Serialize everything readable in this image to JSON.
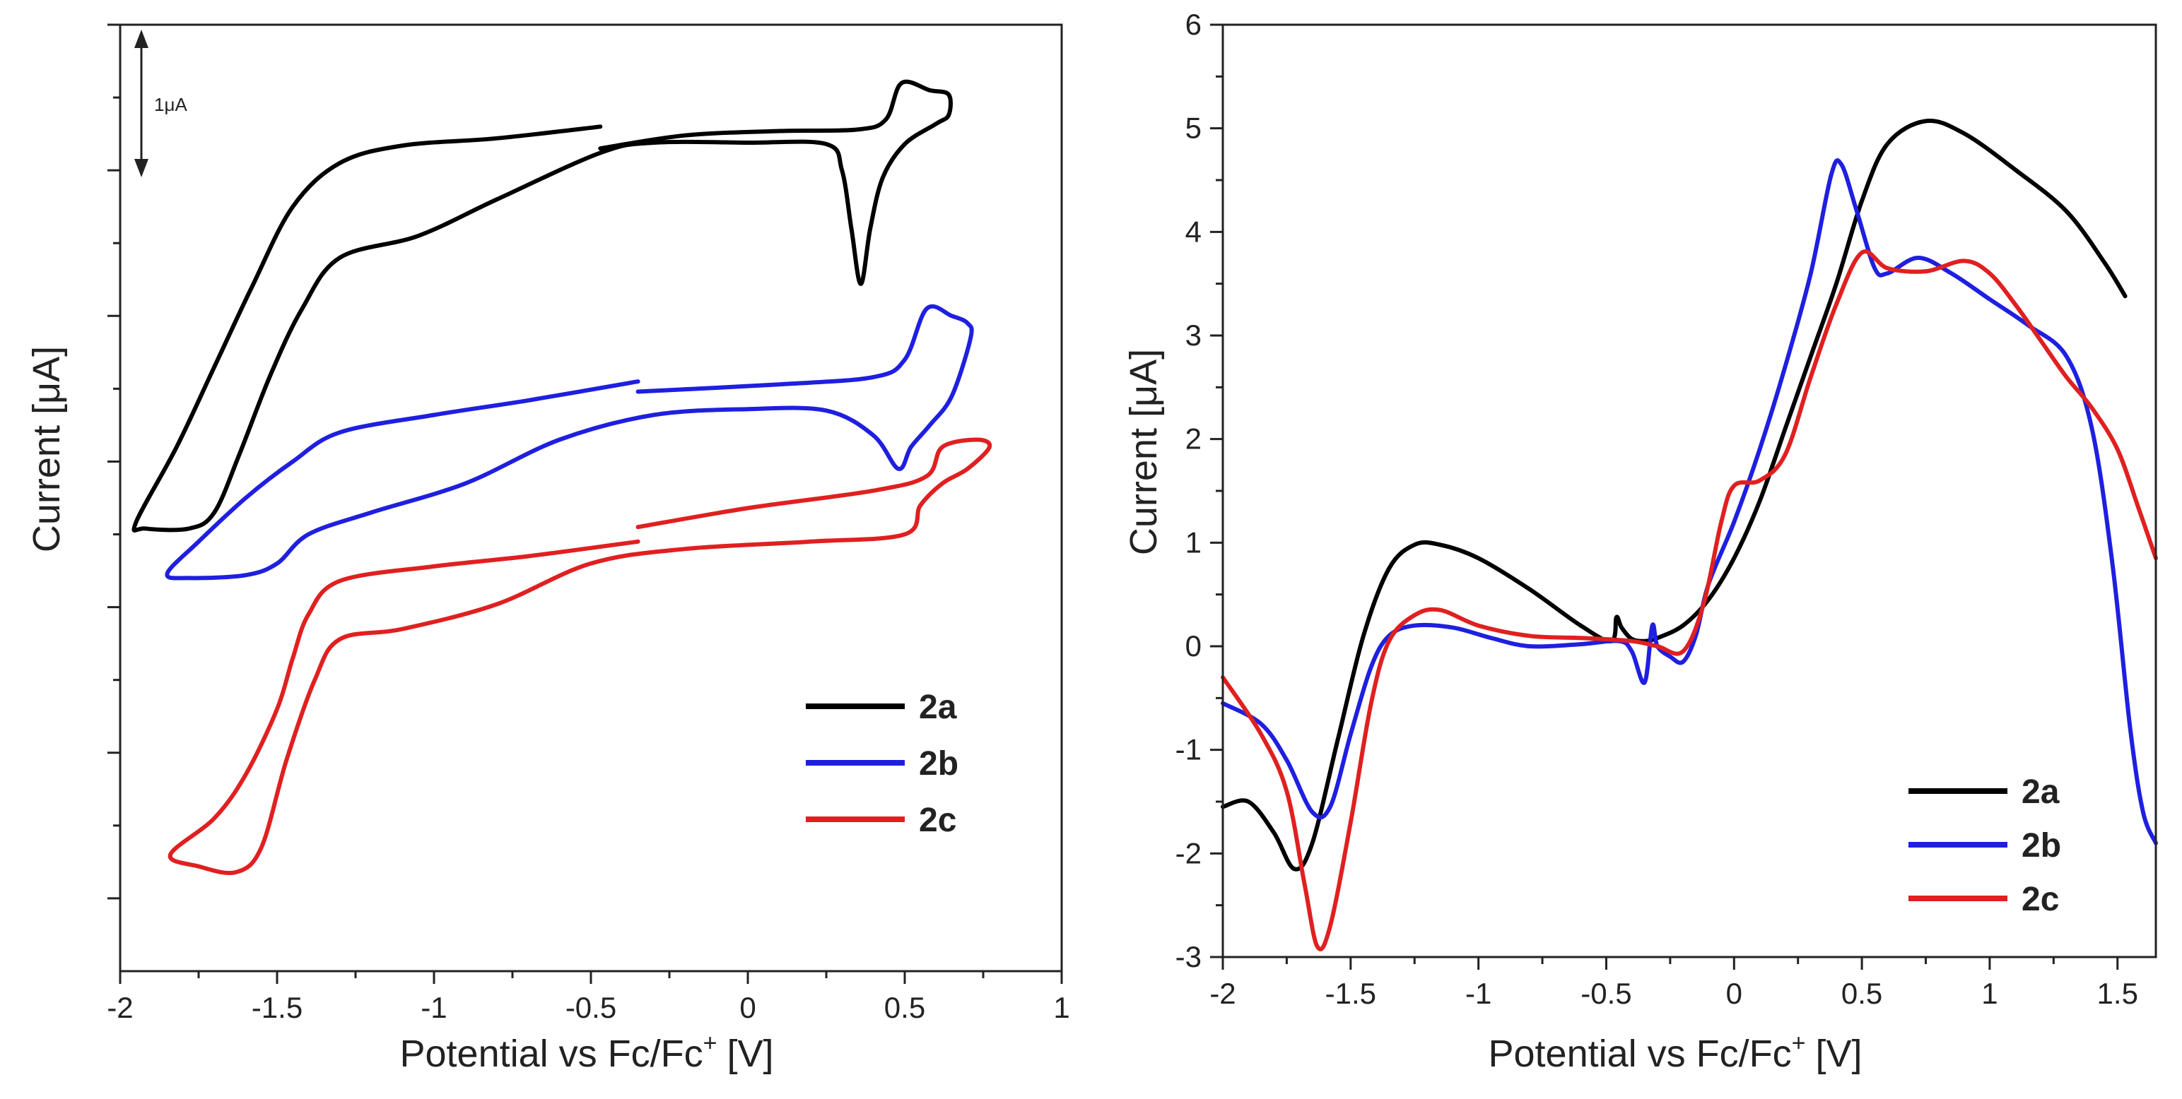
{
  "chart_data": [
    {
      "type": "line",
      "xlabel": "Potential vs Fc/Fc",
      "xlabel_sup": "+",
      "xlabel_unit": "[V]",
      "ylabel": "Current [μA]",
      "xlim": [
        -2,
        1
      ],
      "xticks": [
        "-2",
        "-1.5",
        "-1",
        "-0.5",
        "0",
        "0.5",
        "1"
      ],
      "xtick_values": [
        -2,
        -1.5,
        -1,
        -0.5,
        0,
        0.5,
        1
      ],
      "ylim": [
        0,
        6.5
      ],
      "yticks_unlabeled": [
        0.5,
        1.5,
        2.5,
        3.5,
        4.5,
        5.5,
        6.5
      ],
      "scale_bar": {
        "label": "1μA",
        "value": 1
      },
      "legend": "bottom-right",
      "colors": {
        "2a": "#000000",
        "2b": "#1f1fe0",
        "2c": "#e02020"
      },
      "series": [
        {
          "name": "2a",
          "points": [
            [
              -0.47,
              5.8
            ],
            [
              -0.8,
              5.72
            ],
            [
              -1.1,
              5.67
            ],
            [
              -1.3,
              5.55
            ],
            [
              -1.45,
              5.25
            ],
            [
              -1.58,
              4.7
            ],
            [
              -1.7,
              4.15
            ],
            [
              -1.82,
              3.6
            ],
            [
              -1.95,
              3.08
            ],
            [
              -1.92,
              3.04
            ],
            [
              -1.78,
              3.04
            ],
            [
              -1.7,
              3.15
            ],
            [
              -1.62,
              3.55
            ],
            [
              -1.52,
              4.1
            ],
            [
              -1.42,
              4.55
            ],
            [
              -1.3,
              4.9
            ],
            [
              -1.05,
              5.05
            ],
            [
              -0.8,
              5.3
            ],
            [
              -0.47,
              5.62
            ],
            [
              -0.3,
              5.69
            ],
            [
              0,
              5.69
            ],
            [
              0.25,
              5.68
            ],
            [
              0.3,
              5.5
            ],
            [
              0.33,
              5.1
            ],
            [
              0.36,
              4.72
            ],
            [
              0.39,
              5.1
            ],
            [
              0.43,
              5.45
            ],
            [
              0.5,
              5.68
            ],
            [
              0.6,
              5.82
            ],
            [
              0.64,
              5.88
            ],
            [
              0.64,
              6.02
            ],
            [
              0.58,
              6.05
            ],
            [
              0.49,
              6.1
            ],
            [
              0.44,
              5.85
            ],
            [
              0.35,
              5.78
            ],
            [
              0.1,
              5.77
            ],
            [
              -0.2,
              5.74
            ],
            [
              -0.47,
              5.65
            ]
          ]
        },
        {
          "name": "2b",
          "points": [
            [
              -0.35,
              4.05
            ],
            [
              -0.7,
              3.92
            ],
            [
              -1.0,
              3.82
            ],
            [
              -1.3,
              3.7
            ],
            [
              -1.45,
              3.5
            ],
            [
              -1.6,
              3.25
            ],
            [
              -1.75,
              2.95
            ],
            [
              -1.85,
              2.73
            ],
            [
              -1.78,
              2.7
            ],
            [
              -1.6,
              2.72
            ],
            [
              -1.5,
              2.8
            ],
            [
              -1.4,
              3.0
            ],
            [
              -1.2,
              3.15
            ],
            [
              -0.9,
              3.35
            ],
            [
              -0.6,
              3.65
            ],
            [
              -0.3,
              3.82
            ],
            [
              0,
              3.86
            ],
            [
              0.25,
              3.85
            ],
            [
              0.4,
              3.68
            ],
            [
              0.48,
              3.45
            ],
            [
              0.52,
              3.6
            ],
            [
              0.58,
              3.75
            ],
            [
              0.65,
              3.95
            ],
            [
              0.71,
              4.35
            ],
            [
              0.7,
              4.45
            ],
            [
              0.65,
              4.5
            ],
            [
              0.57,
              4.55
            ],
            [
              0.5,
              4.2
            ],
            [
              0.4,
              4.08
            ],
            [
              0.1,
              4.03
            ],
            [
              -0.35,
              3.98
            ]
          ]
        },
        {
          "name": "2c",
          "points": [
            [
              -0.35,
              2.95
            ],
            [
              -0.7,
              2.85
            ],
            [
              -1.0,
              2.78
            ],
            [
              -1.3,
              2.68
            ],
            [
              -1.4,
              2.45
            ],
            [
              -1.45,
              2.15
            ],
            [
              -1.5,
              1.8
            ],
            [
              -1.6,
              1.35
            ],
            [
              -1.7,
              1.05
            ],
            [
              -1.84,
              0.8
            ],
            [
              -1.75,
              0.72
            ],
            [
              -1.63,
              0.68
            ],
            [
              -1.55,
              0.85
            ],
            [
              -1.47,
              1.45
            ],
            [
              -1.38,
              2.0
            ],
            [
              -1.3,
              2.28
            ],
            [
              -1.1,
              2.35
            ],
            [
              -0.8,
              2.52
            ],
            [
              -0.5,
              2.8
            ],
            [
              -0.2,
              2.9
            ],
            [
              0.2,
              2.95
            ],
            [
              0.5,
              3.0
            ],
            [
              0.55,
              3.2
            ],
            [
              0.62,
              3.35
            ],
            [
              0.7,
              3.45
            ],
            [
              0.77,
              3.6
            ],
            [
              0.73,
              3.65
            ],
            [
              0.62,
              3.6
            ],
            [
              0.57,
              3.4
            ],
            [
              0.4,
              3.3
            ],
            [
              0.0,
              3.18
            ],
            [
              -0.35,
              3.05
            ]
          ]
        }
      ]
    },
    {
      "type": "line",
      "xlabel": "Potential vs Fc/Fc",
      "xlabel_sup": "+",
      "xlabel_unit": "[V]",
      "ylabel": "Current [μA]",
      "xlim": [
        -2,
        1.65
      ],
      "ylim": [
        -3,
        6
      ],
      "xticks": [
        "-2",
        "-1.5",
        "-1",
        "-0.5",
        "0",
        "0.5",
        "1",
        "1.5"
      ],
      "xtick_values": [
        -2,
        -1.5,
        -1,
        -0.5,
        0,
        0.5,
        1,
        1.5
      ],
      "yticks": [
        "-3",
        "-2",
        "-1",
        "0",
        "1",
        "2",
        "3",
        "4",
        "5",
        "6"
      ],
      "ytick_values": [
        -3,
        -2,
        -1,
        0,
        1,
        2,
        3,
        4,
        5,
        6
      ],
      "legend": "bottom-right",
      "colors": {
        "2a": "#000000",
        "2b": "#1f1fe0",
        "2c": "#e02020"
      },
      "series": [
        {
          "name": "2a",
          "points": [
            [
              -2.0,
              -1.55
            ],
            [
              -1.9,
              -1.5
            ],
            [
              -1.8,
              -1.8
            ],
            [
              -1.72,
              -2.15
            ],
            [
              -1.65,
              -1.9
            ],
            [
              -1.55,
              -0.9
            ],
            [
              -1.45,
              0.1
            ],
            [
              -1.35,
              0.75
            ],
            [
              -1.25,
              0.98
            ],
            [
              -1.15,
              0.98
            ],
            [
              -1.0,
              0.85
            ],
            [
              -0.8,
              0.55
            ],
            [
              -0.6,
              0.2
            ],
            [
              -0.48,
              0.05
            ],
            [
              -0.46,
              0.28
            ],
            [
              -0.44,
              0.18
            ],
            [
              -0.4,
              0.07
            ],
            [
              -0.35,
              0.05
            ],
            [
              -0.3,
              0.08
            ],
            [
              -0.2,
              0.2
            ],
            [
              -0.1,
              0.45
            ],
            [
              0.0,
              0.85
            ],
            [
              0.1,
              1.4
            ],
            [
              0.2,
              2.1
            ],
            [
              0.3,
              2.8
            ],
            [
              0.4,
              3.5
            ],
            [
              0.5,
              4.3
            ],
            [
              0.6,
              4.85
            ],
            [
              0.75,
              5.07
            ],
            [
              0.9,
              4.95
            ],
            [
              1.1,
              4.6
            ],
            [
              1.3,
              4.2
            ],
            [
              1.45,
              3.7
            ],
            [
              1.53,
              3.38
            ]
          ]
        },
        {
          "name": "2b",
          "points": [
            [
              -2.0,
              -0.55
            ],
            [
              -1.85,
              -0.75
            ],
            [
              -1.75,
              -1.1
            ],
            [
              -1.65,
              -1.6
            ],
            [
              -1.58,
              -1.55
            ],
            [
              -1.5,
              -0.85
            ],
            [
              -1.42,
              -0.2
            ],
            [
              -1.35,
              0.1
            ],
            [
              -1.25,
              0.2
            ],
            [
              -1.1,
              0.18
            ],
            [
              -0.95,
              0.08
            ],
            [
              -0.8,
              0.0
            ],
            [
              -0.6,
              0.02
            ],
            [
              -0.45,
              0.05
            ],
            [
              -0.4,
              -0.05
            ],
            [
              -0.35,
              -0.35
            ],
            [
              -0.32,
              0.2
            ],
            [
              -0.3,
              0.0
            ],
            [
              -0.25,
              -0.1
            ],
            [
              -0.2,
              -0.15
            ],
            [
              -0.15,
              0.1
            ],
            [
              -0.1,
              0.6
            ],
            [
              0.0,
              1.2
            ],
            [
              0.1,
              1.9
            ],
            [
              0.2,
              2.7
            ],
            [
              0.3,
              3.6
            ],
            [
              0.38,
              4.55
            ],
            [
              0.42,
              4.65
            ],
            [
              0.48,
              4.2
            ],
            [
              0.55,
              3.65
            ],
            [
              0.6,
              3.6
            ],
            [
              0.72,
              3.75
            ],
            [
              0.85,
              3.6
            ],
            [
              1.0,
              3.35
            ],
            [
              1.15,
              3.1
            ],
            [
              1.3,
              2.8
            ],
            [
              1.4,
              2.1
            ],
            [
              1.48,
              0.8
            ],
            [
              1.55,
              -0.8
            ],
            [
              1.6,
              -1.6
            ],
            [
              1.65,
              -1.9
            ]
          ]
        },
        {
          "name": "2c",
          "points": [
            [
              -2.0,
              -0.3
            ],
            [
              -1.85,
              -0.85
            ],
            [
              -1.75,
              -1.4
            ],
            [
              -1.68,
              -2.3
            ],
            [
              -1.63,
              -2.9
            ],
            [
              -1.58,
              -2.7
            ],
            [
              -1.5,
              -1.7
            ],
            [
              -1.42,
              -0.55
            ],
            [
              -1.35,
              0.05
            ],
            [
              -1.25,
              0.3
            ],
            [
              -1.15,
              0.35
            ],
            [
              -1.0,
              0.2
            ],
            [
              -0.8,
              0.1
            ],
            [
              -0.6,
              0.08
            ],
            [
              -0.4,
              0.05
            ],
            [
              -0.3,
              0.0
            ],
            [
              -0.2,
              -0.05
            ],
            [
              -0.12,
              0.4
            ],
            [
              -0.05,
              1.2
            ],
            [
              0.0,
              1.55
            ],
            [
              0.1,
              1.6
            ],
            [
              0.2,
              1.85
            ],
            [
              0.3,
              2.6
            ],
            [
              0.4,
              3.3
            ],
            [
              0.5,
              3.8
            ],
            [
              0.6,
              3.65
            ],
            [
              0.75,
              3.62
            ],
            [
              0.9,
              3.72
            ],
            [
              1.0,
              3.6
            ],
            [
              1.1,
              3.3
            ],
            [
              1.2,
              2.95
            ],
            [
              1.3,
              2.6
            ],
            [
              1.4,
              2.3
            ],
            [
              1.5,
              1.9
            ],
            [
              1.58,
              1.35
            ],
            [
              1.65,
              0.85
            ]
          ]
        }
      ]
    }
  ]
}
